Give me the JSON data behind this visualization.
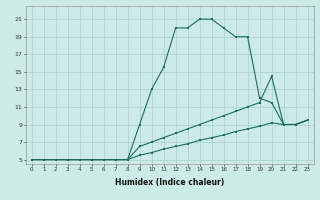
{
  "xlabel": "Humidex (Indice chaleur)",
  "bg_color": "#cceae8",
  "grid_color": "#aed4d2",
  "line_color": "#1e6b5e",
  "xlim": [
    -0.5,
    23.5
  ],
  "ylim": [
    4.5,
    22.5
  ],
  "xticks": [
    0,
    1,
    2,
    3,
    4,
    5,
    6,
    7,
    8,
    9,
    10,
    11,
    12,
    13,
    14,
    15,
    16,
    17,
    18,
    19,
    20,
    21,
    22,
    23
  ],
  "yticks": [
    5,
    7,
    9,
    11,
    13,
    15,
    17,
    19,
    21
  ],
  "series1_x": [
    0,
    1,
    2,
    3,
    4,
    5,
    6,
    7,
    8,
    9,
    10,
    11,
    12,
    13,
    14,
    15,
    16,
    17,
    18,
    19,
    20,
    21,
    22,
    23
  ],
  "series1_y": [
    5,
    5,
    5,
    5,
    5,
    5,
    5,
    5,
    5,
    9,
    13,
    15.5,
    20,
    20,
    21,
    21,
    20,
    19,
    19,
    12,
    11.5,
    9,
    9,
    9.5
  ],
  "series2_x": [
    0,
    1,
    2,
    3,
    4,
    5,
    6,
    7,
    8,
    9,
    10,
    11,
    12,
    13,
    14,
    15,
    16,
    17,
    18,
    19,
    20,
    21,
    22,
    23
  ],
  "series2_y": [
    5,
    5,
    5,
    5,
    5,
    5,
    5,
    5,
    5,
    6.5,
    7,
    7.5,
    8,
    8.5,
    9,
    9.5,
    10,
    10.5,
    11,
    11.5,
    14.5,
    9,
    9,
    9.5
  ],
  "series3_x": [
    0,
    1,
    2,
    3,
    4,
    5,
    6,
    7,
    8,
    9,
    10,
    11,
    12,
    13,
    14,
    15,
    16,
    17,
    18,
    19,
    20,
    21,
    22,
    23
  ],
  "series3_y": [
    5,
    5,
    5,
    5,
    5,
    5,
    5,
    5,
    5,
    5.5,
    5.8,
    6.2,
    6.5,
    6.8,
    7.2,
    7.5,
    7.8,
    8.2,
    8.5,
    8.8,
    9.2,
    9,
    9,
    9.5
  ]
}
